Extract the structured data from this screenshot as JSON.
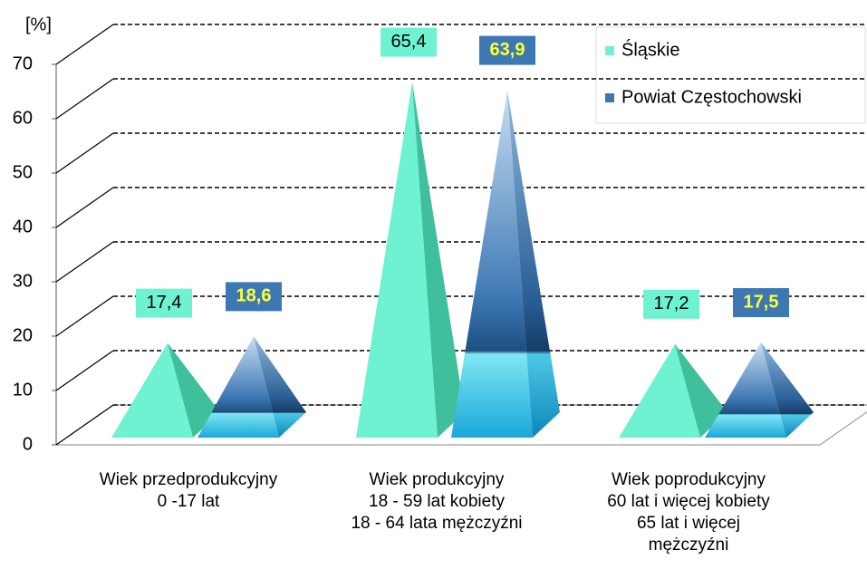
{
  "chart_data": {
    "type": "pyramid",
    "y_label": "[%]",
    "categories": [
      "Wiek przedprodukcyjny\n0 -17 lat",
      "Wiek produkcyjny\n18 - 59 lat kobiety\n18 - 64 lata mężczyźni",
      "Wiek poprodukcyjny\n60 lat i więcej kobiety\n65 lat i więcej\nmężczyźni"
    ],
    "series": [
      {
        "name": "Śląskie",
        "color": "#6ff2d2",
        "values": [
          17.4,
          65.4,
          17.2
        ],
        "value_labels": [
          "17,4",
          "65,4",
          "17,2"
        ]
      },
      {
        "name": "Powiat Częstochowski",
        "color": "#3d78b4",
        "values": [
          18.6,
          63.9,
          17.5
        ],
        "value_labels": [
          "18,6",
          "63,9",
          "17,5"
        ]
      }
    ],
    "ylim": [
      0,
      70
    ],
    "yticks": [
      0,
      10,
      20,
      30,
      40,
      50,
      60,
      70
    ],
    "grid": true
  }
}
